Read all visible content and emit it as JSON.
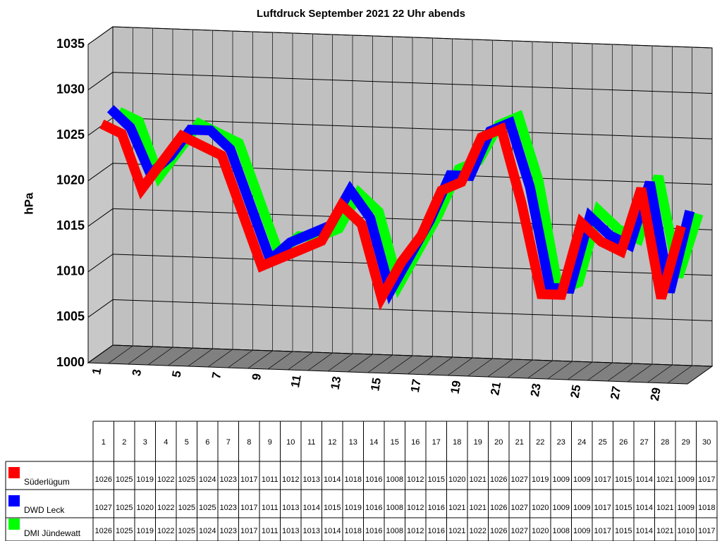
{
  "chart_data": {
    "type": "line3d",
    "title": "Luftdruck September 2021 22 Uhr abends",
    "y_label": "hPa",
    "categories": [
      "1",
      "2",
      "3",
      "4",
      "5",
      "6",
      "7",
      "8",
      "9",
      "10",
      "11",
      "12",
      "13",
      "14",
      "15",
      "16",
      "17",
      "18",
      "19",
      "20",
      "21",
      "22",
      "23",
      "24",
      "25",
      "26",
      "27",
      "28",
      "29",
      "30"
    ],
    "ylim": [
      1000,
      1035
    ],
    "yticks": [
      1000,
      1005,
      1010,
      1015,
      1020,
      1025,
      1030,
      1035
    ],
    "grid": true,
    "series": [
      {
        "name": "Süderlügum",
        "color": "#ff0000",
        "values": [
          1026,
          1025,
          1019,
          1022,
          1025,
          1024,
          1023,
          1017,
          1011,
          1012,
          1013,
          1014,
          1018,
          1016,
          1008,
          1012,
          1015,
          1020,
          1021,
          1026,
          1027,
          1019,
          1009,
          1009,
          1017,
          1015,
          1014,
          1021,
          1009,
          1017
        ]
      },
      {
        "name": "DWD Leck",
        "color": "#0000ff",
        "values": [
          1027,
          1025,
          1020,
          1022,
          1025,
          1025,
          1023,
          1017,
          1011,
          1013,
          1014,
          1015,
          1019,
          1016,
          1008,
          1012,
          1016,
          1021,
          1021,
          1026,
          1027,
          1020,
          1009,
          1009,
          1017,
          1015,
          1014,
          1021,
          1009,
          1018
        ]
      },
      {
        "name": "DMI Jündewatt",
        "color": "#00ff00",
        "values": [
          1026,
          1025,
          1019,
          1022,
          1025,
          1024,
          1023,
          1017,
          1011,
          1013,
          1013,
          1014,
          1018,
          1016,
          1008,
          1012,
          1016,
          1021,
          1022,
          1026,
          1027,
          1020,
          1008,
          1009,
          1017,
          1015,
          1014,
          1021,
          1010,
          1017
        ]
      }
    ]
  }
}
